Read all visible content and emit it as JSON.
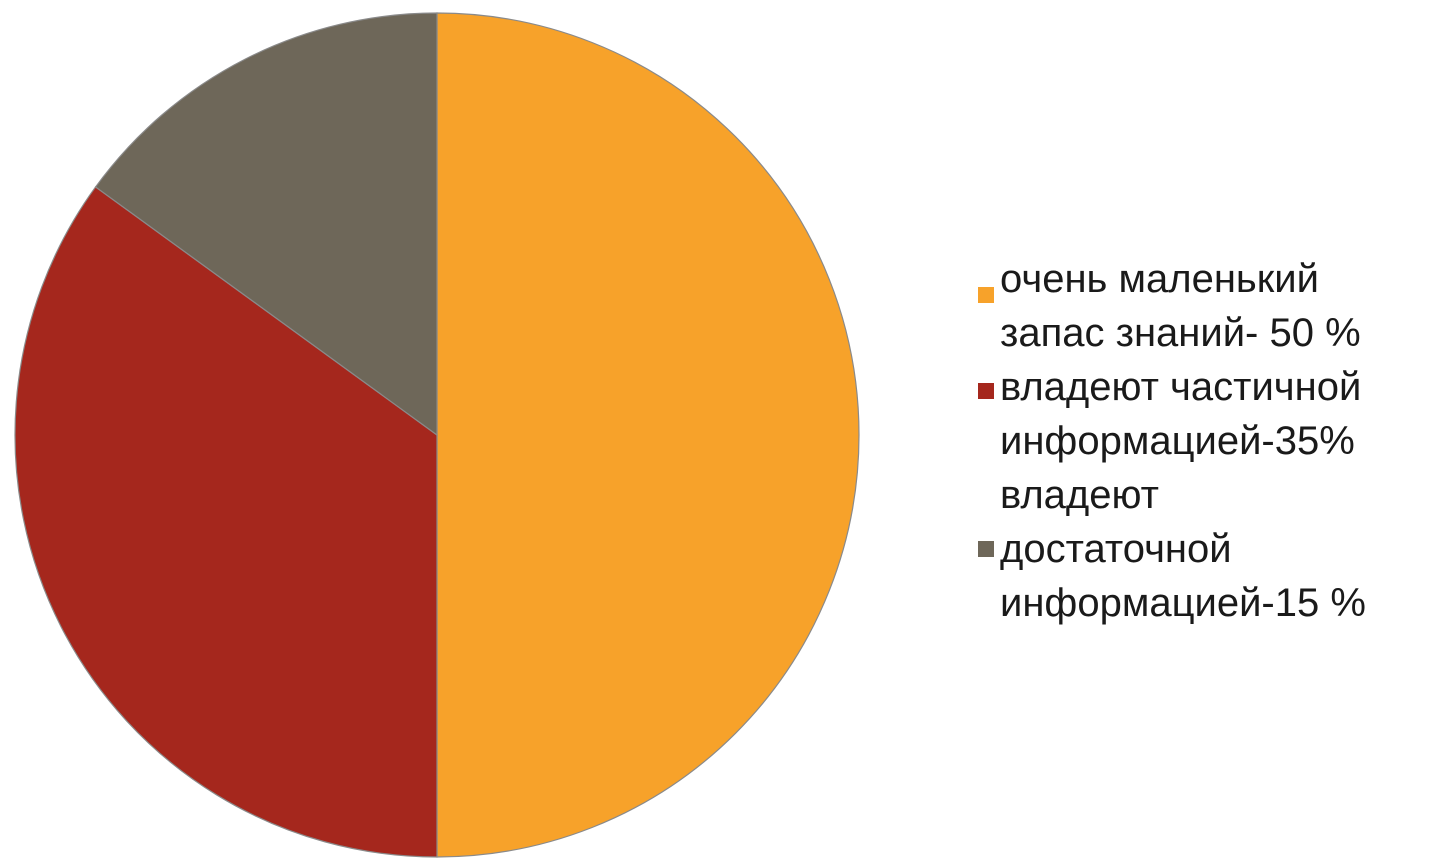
{
  "chart_data": {
    "type": "pie",
    "title": "",
    "slices": [
      {
        "label": "очень маленький\nзапас знаний- 50 %",
        "value": 50,
        "color": "#F7A22A"
      },
      {
        "label": "владеют частичной\nинформацией-35%",
        "value": 35,
        "color": "#A5271D"
      },
      {
        "label": "владеют\nдостаточной\nинформацией-15 %",
        "value": 15,
        "color": "#6E6759"
      }
    ],
    "legend_position": "right",
    "start": "top",
    "direction": "clockwise"
  }
}
